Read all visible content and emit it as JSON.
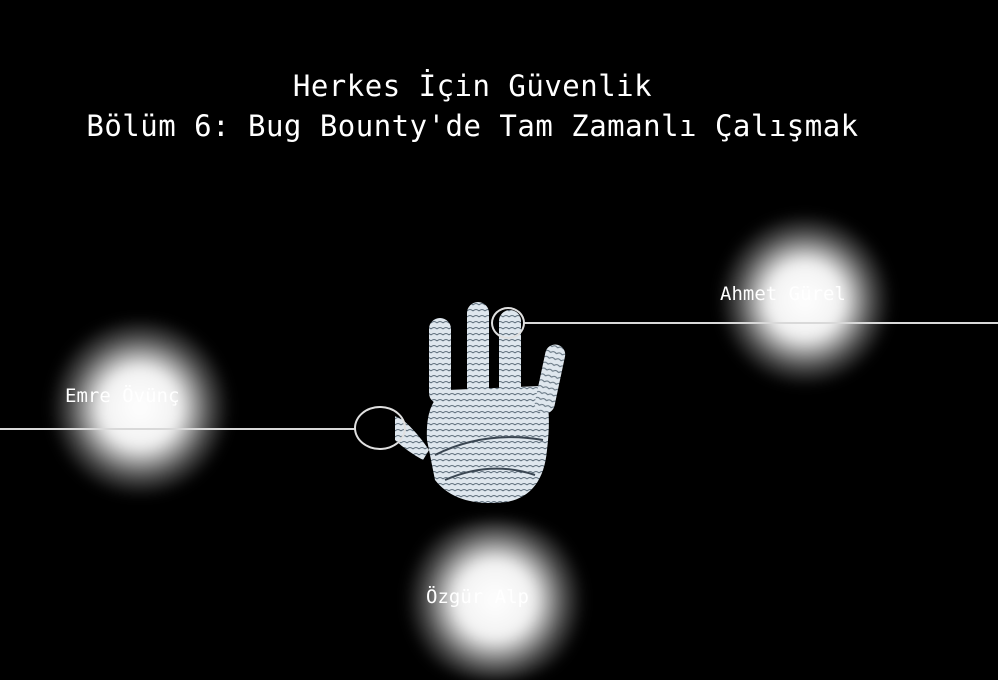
{
  "title": {
    "line1": "Herkes İçin Güvenlik",
    "line2": "Bölüm 6: Bug Bounty'de Tam Zamanlı Çalışmak"
  },
  "people": {
    "right": "Ahmet Gürel",
    "left": "Emre Övünç",
    "bottom": "Özgür Alp"
  },
  "icons": {
    "center": "handprint-icon"
  },
  "colors": {
    "background": "#000000",
    "text": "#ffffff",
    "handprint": "#dfe7ee"
  }
}
